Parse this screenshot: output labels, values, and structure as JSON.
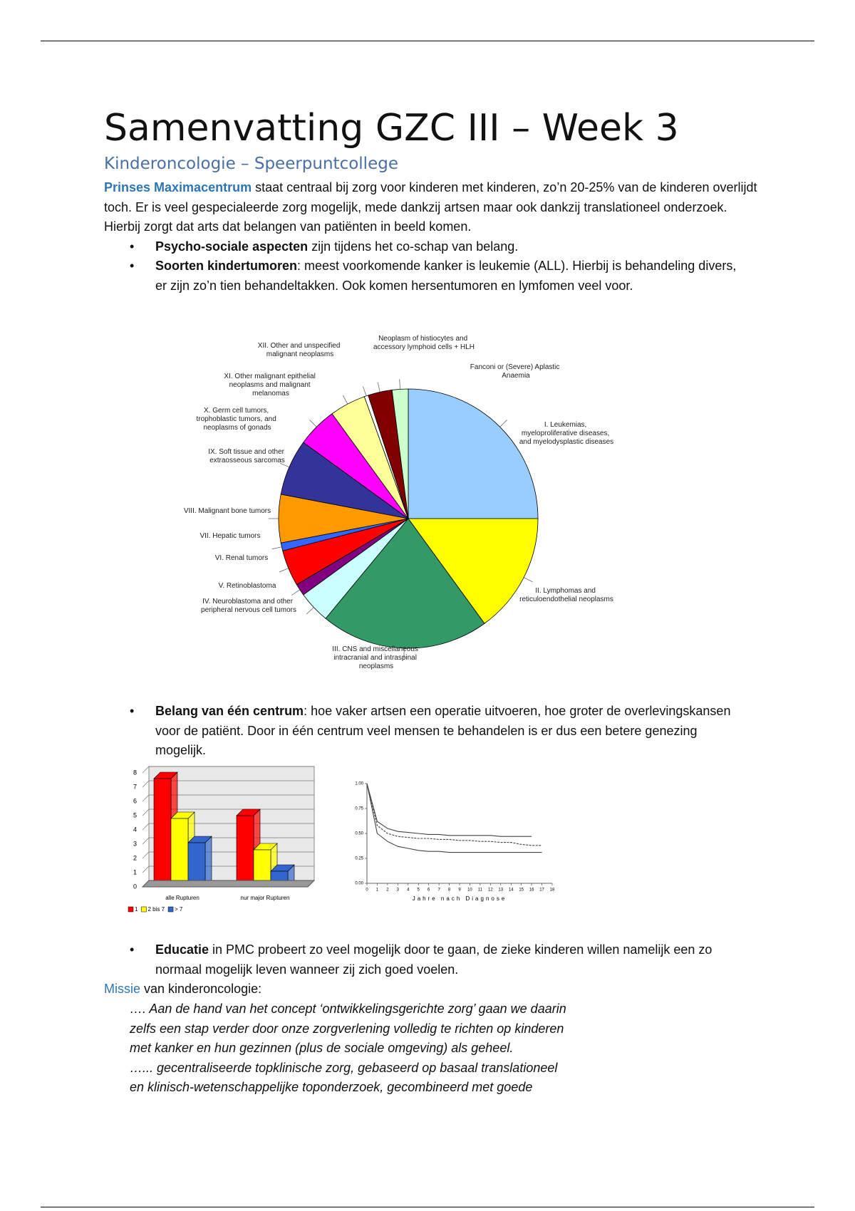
{
  "header": {
    "title": "Samenvatting GZC III – Week 3",
    "subtitle": "Kinderoncologie – Speerpuntcollege"
  },
  "intro": {
    "lead": "Prinses Maximacentrum",
    "text": " staat centraal bij zorg voor kinderen met kinderen, zo’n 20-25% van de kinderen overlijdt toch. Er is veel gespecialeerde zorg mogelijk, mede dankzij artsen maar ook dankzij translationeel onderzoek. Hierbij zorgt dat arts dat belangen van patiënten in beeld komen."
  },
  "bullets": [
    {
      "bold": "Psycho-sociale aspecten",
      "text": " zijn tijdens het co-schap van belang."
    },
    {
      "bold": "Soorten kindertumoren",
      "text": ": meest voorkomende kanker is leukemie (ALL). Hierbij is behandeling divers, er zijn zo’n tien behandeltakken. Ook komen hersentumoren en lymfomen veel voor."
    },
    {
      "bold": "Belang van één centrum",
      "text": ": hoe vaker artsen een operatie uitvoeren, hoe groter de overlevingskansen voor de patiënt. Door in één centrum veel mensen te behandelen is er dus een betere genezing mogelijk."
    },
    {
      "bold": "Educatie",
      "text": " in PMC probeert zo veel mogelijk door te gaan, de zieke kinderen willen namelijk een zo normaal mogelijk leven wanneer zij zich goed voelen."
    }
  ],
  "mission": {
    "lead": "Missie",
    "text": " van kinderoncologie:",
    "quote": [
      "…. Aan de hand van het concept ‘ontwikkelingsgerichte zorg’ gaan we daarin",
      "zelfs een stap verder door onze zorgverlening volledig te richten op kinderen",
      "met kanker en hun gezinnen (plus de sociale omgeving) als geheel.",
      "…... gecentraliseerde topklinische zorg, gebaseerd op basaal translationeel",
      "en klinisch-wetenschappelijke toponderzoek, gecombineerd met goede"
    ]
  },
  "chart_data": [
    {
      "type": "pie",
      "categories": [
        "I. Leukemias, myeloproliferative diseases, and myelodysplastic diseases",
        "II. Lymphomas and reticuloendothelial neoplasms",
        "III. CNS and miscellaneous intracranial and intraspinal neoplasms",
        "IV. Neuroblastoma and other peripheral nervous cell tumors",
        "V. Retinoblastoma",
        "VI. Renal tumors",
        "VII. Hepatic tumors",
        "VIII. Malignant bone tumors",
        "IX. Soft tissue and other extraosseous sarcomas",
        "X. Germ cell tumors, trophoblastic tumors, and neoplasms of gonads",
        "XI. Other malignant epithelial neoplasms and malignant melanomas",
        "XII. Other and unspecified malignant neoplasms",
        "Neoplasm of histiocytes and accessory lymphoid cells + HLH",
        "Fanconi or (Severe) Aplastic Anaemia"
      ],
      "values": [
        25,
        15,
        21,
        4,
        1.5,
        4.5,
        1,
        6,
        7,
        5,
        4.5,
        0.5,
        3,
        2
      ],
      "colors": [
        "#99ccff",
        "#ffff00",
        "#339966",
        "#ccffff",
        "#800080",
        "#ff0000",
        "#3366ff",
        "#ff9900",
        "#333399",
        "#ff00ff",
        "#ffff99",
        "#ffffff",
        "#800000",
        "#ccffcc"
      ]
    },
    {
      "type": "bar",
      "categories": [
        "alle Rupturen",
        "nur major Rupturen"
      ],
      "series": [
        {
          "name": "1",
          "color": "#ff0000",
          "values": [
            7.6,
            5.0
          ]
        },
        {
          "name": "2 bis 7",
          "color": "#ffff00",
          "values": [
            4.8,
            2.6
          ]
        },
        {
          "name": "> 7",
          "color": "#3366cc",
          "values": [
            3.1,
            1.1
          ]
        }
      ],
      "ylim": [
        0,
        8
      ],
      "yticks": [
        0,
        1,
        2,
        3,
        4,
        5,
        6,
        7,
        8
      ],
      "grid": true
    },
    {
      "type": "line",
      "x_label": "Jahre nach Diagnose",
      "x": [
        0,
        1,
        2,
        3,
        4,
        5,
        6,
        7,
        8,
        9,
        10,
        11,
        12,
        13,
        14,
        15,
        16,
        17
      ],
      "series": [
        {
          "color": "#444444",
          "values": [
            1.0,
            0.62,
            0.55,
            0.52,
            0.51,
            0.5,
            0.49,
            0.49,
            0.48,
            0.48,
            0.48,
            0.48,
            0.48,
            0.47,
            0.47,
            0.47,
            0.47,
            null
          ]
        },
        {
          "color": "#444444",
          "values": [
            1.0,
            0.58,
            0.5,
            0.47,
            0.46,
            0.45,
            0.45,
            0.44,
            0.44,
            0.43,
            0.43,
            0.42,
            0.42,
            0.41,
            0.41,
            0.39,
            0.38,
            0.38
          ]
        },
        {
          "color": "#444444",
          "values": [
            1.0,
            0.5,
            0.42,
            0.37,
            0.35,
            0.33,
            0.32,
            0.32,
            0.31,
            0.31,
            0.31,
            0.31,
            0.31,
            0.31,
            0.31,
            0.31,
            0.31,
            0.31
          ]
        }
      ],
      "xlim": [
        0,
        18
      ],
      "xticks": [
        0,
        1,
        2,
        3,
        4,
        5,
        6,
        7,
        8,
        9,
        10,
        11,
        12,
        13,
        14,
        15,
        16,
        17,
        18
      ],
      "ylim": [
        0,
        1
      ],
      "yticks": [
        {
          "value": 0,
          "label": "0.00"
        },
        {
          "value": 0.25,
          "label": "0.25"
        },
        {
          "value": 0.5,
          "label": "0.50"
        },
        {
          "value": 0.75,
          "label": "0.75"
        },
        {
          "value": 1,
          "label": "1.00"
        }
      ]
    }
  ]
}
